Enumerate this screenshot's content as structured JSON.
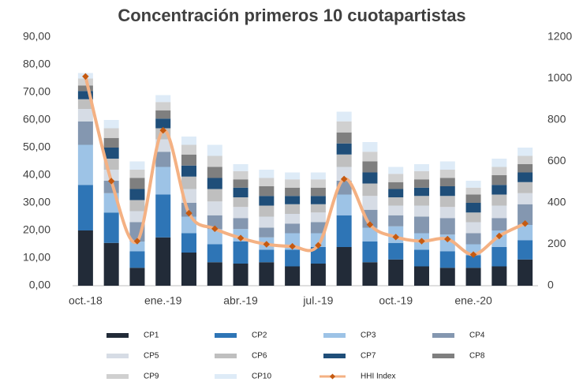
{
  "chart_data": {
    "type": "bar",
    "stacked": true,
    "title": "Concentración primeros 10 cuotapartistas",
    "categories": [
      "oct.-18",
      null,
      null,
      "ene.-19",
      null,
      null,
      "abr.-19",
      null,
      null,
      "jul.-19",
      null,
      null,
      "oct.-19",
      null,
      null,
      "ene.-20",
      null,
      null
    ],
    "ylim": [
      0,
      90
    ],
    "yticks": [
      {
        "value": 0,
        "label": "0,00"
      },
      {
        "value": 10,
        "label": "10,00"
      },
      {
        "value": 20,
        "label": "20,00"
      },
      {
        "value": 30,
        "label": "30,00"
      },
      {
        "value": 40,
        "label": "40,00"
      },
      {
        "value": 50,
        "label": "50,00"
      },
      {
        "value": 60,
        "label": "60,00"
      },
      {
        "value": 70,
        "label": "70,00"
      },
      {
        "value": 80,
        "label": "80,00"
      },
      {
        "value": 90,
        "label": "90,00"
      }
    ],
    "y2lim": [
      0,
      1200
    ],
    "y2ticks": [
      0,
      200,
      400,
      600,
      800,
      1000,
      1200
    ],
    "series": [
      {
        "name": "CP1",
        "color": "#222b38",
        "values": [
          20,
          15.5,
          6.5,
          17.5,
          12,
          8.5,
          8,
          8.5,
          7,
          8,
          14,
          8.5,
          9.5,
          7,
          6.5,
          6.5,
          7,
          9.5
        ]
      },
      {
        "name": "CP2",
        "color": "#2e75b6",
        "values": [
          16.5,
          11,
          6,
          15.5,
          7,
          6.5,
          8,
          4.5,
          6,
          6,
          11.5,
          7.5,
          6,
          6,
          6,
          4.5,
          7,
          7
        ]
      },
      {
        "name": "CP3",
        "color": "#9dc3e6",
        "values": [
          14.5,
          7,
          3.5,
          10,
          6,
          5.5,
          4.5,
          4.5,
          6,
          5,
          7.5,
          5,
          6,
          6,
          6,
          4,
          6,
          5.5
        ]
      },
      {
        "name": "CP4",
        "color": "#8497b0",
        "values": [
          8.5,
          4.5,
          7,
          5.5,
          5,
          5,
          4,
          3.5,
          3.5,
          4,
          5,
          6.5,
          4,
          6,
          6,
          4,
          4.5,
          7.5
        ]
      },
      {
        "name": "CP5",
        "color": "#d6dce5",
        "values": [
          4.5,
          4,
          4,
          4.5,
          5,
          5,
          4,
          4,
          3.5,
          3.5,
          5,
          5,
          3.5,
          4,
          4,
          4,
          4.5,
          4
        ]
      },
      {
        "name": "CP6",
        "color": "#bfbfbf",
        "values": [
          3.5,
          4,
          4,
          4,
          4.5,
          4.5,
          3.5,
          4,
          3.5,
          3,
          4.5,
          4.5,
          3,
          3.5,
          4,
          3.5,
          4,
          4
        ]
      },
      {
        "name": "CP7",
        "color": "#1f4e79",
        "values": [
          3,
          4,
          4,
          3.5,
          4,
          4,
          3.5,
          3.5,
          3,
          3,
          4,
          4,
          3,
          3,
          3.5,
          3.5,
          3.5,
          3.5
        ]
      },
      {
        "name": "CP8",
        "color": "#7f7f7f",
        "values": [
          2,
          3.5,
          4,
          3,
          4,
          4,
          3,
          3.5,
          3,
          3,
          4,
          4,
          2.5,
          3,
          3,
          3,
          3.5,
          3
        ]
      },
      {
        "name": "CP9",
        "color": "#d0d0d0",
        "values": [
          2.5,
          3.5,
          3,
          3,
          3.5,
          4,
          3,
          3,
          3,
          3,
          4,
          3.5,
          3,
          3,
          3,
          2.5,
          3,
          3
        ]
      },
      {
        "name": "CP10",
        "color": "#deebf7",
        "values": [
          2,
          3,
          3,
          2.5,
          3,
          4,
          2.5,
          3,
          2.5,
          2.5,
          3.5,
          3.5,
          2.5,
          2.5,
          3,
          2.5,
          3,
          3
        ]
      },
      {
        "name": "HHI Index",
        "type": "line",
        "axis": "y2",
        "color": "#f4b183",
        "marker_color": "#c55a11",
        "values": [
          1010,
          505,
          215,
          750,
          350,
          275,
          230,
          200,
          190,
          195,
          515,
          295,
          235,
          215,
          225,
          150,
          240,
          300
        ]
      }
    ]
  }
}
